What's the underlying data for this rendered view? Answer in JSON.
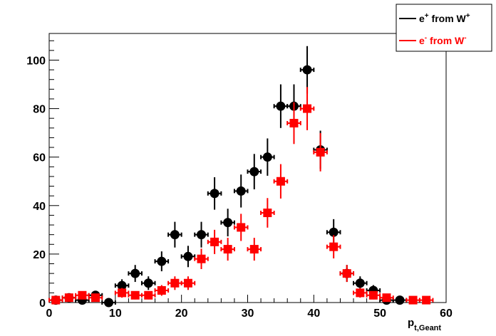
{
  "chart_data": {
    "type": "scatter",
    "title": "",
    "xlabel": {
      "main": "p",
      "sub": "t,Geant"
    },
    "ylabel": "",
    "xlim": [
      0,
      60
    ],
    "ylim": [
      0,
      111
    ],
    "x_ticks": [
      0,
      10,
      20,
      30,
      40,
      50,
      60
    ],
    "y_ticks": [
      0,
      20,
      40,
      60,
      80,
      100
    ],
    "grid": false,
    "legend_position": "top-right",
    "series": [
      {
        "name": "e+ from W+",
        "legend": {
          "p1": "e",
          "s1": "+",
          "p2": " from W",
          "s2": "+"
        },
        "color": "#000000",
        "marker": "circle",
        "points": [
          {
            "x": 1,
            "y": 1,
            "err": 0.8
          },
          {
            "x": 3,
            "y": 2,
            "err": 1.2
          },
          {
            "x": 5,
            "y": 1,
            "err": 1
          },
          {
            "x": 7,
            "y": 3,
            "err": 1.7
          },
          {
            "x": 9,
            "y": 0,
            "err": 0
          },
          {
            "x": 11,
            "y": 7,
            "err": 2.6
          },
          {
            "x": 13,
            "y": 12,
            "err": 3.5
          },
          {
            "x": 15,
            "y": 8,
            "err": 2.8
          },
          {
            "x": 17,
            "y": 17,
            "err": 4.1
          },
          {
            "x": 19,
            "y": 28,
            "err": 5.3
          },
          {
            "x": 21,
            "y": 19,
            "err": 4.4
          },
          {
            "x": 23,
            "y": 28,
            "err": 5.3
          },
          {
            "x": 25,
            "y": 45,
            "err": 6.7
          },
          {
            "x": 27,
            "y": 33,
            "err": 5.7
          },
          {
            "x": 29,
            "y": 46,
            "err": 6.8
          },
          {
            "x": 31,
            "y": 54,
            "err": 7.3
          },
          {
            "x": 33,
            "y": 60,
            "err": 7.7
          },
          {
            "x": 35,
            "y": 81,
            "err": 9
          },
          {
            "x": 37,
            "y": 81,
            "err": 9
          },
          {
            "x": 39,
            "y": 96,
            "err": 9.8
          },
          {
            "x": 41,
            "y": 63,
            "err": 7.9
          },
          {
            "x": 43,
            "y": 29,
            "err": 5.4
          },
          {
            "x": 45,
            "y": 12,
            "err": 3.5
          },
          {
            "x": 47,
            "y": 8,
            "err": 2.8
          },
          {
            "x": 49,
            "y": 5,
            "err": 2.2
          },
          {
            "x": 51,
            "y": 1,
            "err": 1
          },
          {
            "x": 53,
            "y": 1,
            "err": 1
          }
        ]
      },
      {
        "name": "e- from W-",
        "legend": {
          "p1": "e",
          "s1": "-",
          "p2": " from W",
          "s2": "-"
        },
        "color": "#ff0000",
        "marker": "square",
        "points": [
          {
            "x": 1,
            "y": 1,
            "err": 1
          },
          {
            "x": 3,
            "y": 2,
            "err": 1.4
          },
          {
            "x": 5,
            "y": 3,
            "err": 1.7
          },
          {
            "x": 7,
            "y": 2,
            "err": 1.4
          },
          {
            "x": 11,
            "y": 4,
            "err": 2
          },
          {
            "x": 13,
            "y": 3,
            "err": 1.7
          },
          {
            "x": 15,
            "y": 3,
            "err": 1.7
          },
          {
            "x": 17,
            "y": 5,
            "err": 2.2
          },
          {
            "x": 19,
            "y": 8,
            "err": 2.8
          },
          {
            "x": 21,
            "y": 8,
            "err": 2.8
          },
          {
            "x": 23,
            "y": 18,
            "err": 4.2
          },
          {
            "x": 25,
            "y": 25,
            "err": 5
          },
          {
            "x": 27,
            "y": 22,
            "err": 4.7
          },
          {
            "x": 29,
            "y": 31,
            "err": 5.6
          },
          {
            "x": 31,
            "y": 22,
            "err": 4.7
          },
          {
            "x": 33,
            "y": 37,
            "err": 6.1
          },
          {
            "x": 35,
            "y": 50,
            "err": 7.1
          },
          {
            "x": 37,
            "y": 74,
            "err": 8.6
          },
          {
            "x": 39,
            "y": 80,
            "err": 8.9
          },
          {
            "x": 41,
            "y": 62,
            "err": 7.9
          },
          {
            "x": 43,
            "y": 23,
            "err": 4.8
          },
          {
            "x": 45,
            "y": 12,
            "err": 3.5
          },
          {
            "x": 47,
            "y": 4,
            "err": 2
          },
          {
            "x": 49,
            "y": 3,
            "err": 1.7
          },
          {
            "x": 51,
            "y": 2,
            "err": 1.4
          },
          {
            "x": 55,
            "y": 1,
            "err": 1
          },
          {
            "x": 57,
            "y": 1,
            "err": 1
          }
        ]
      }
    ]
  }
}
